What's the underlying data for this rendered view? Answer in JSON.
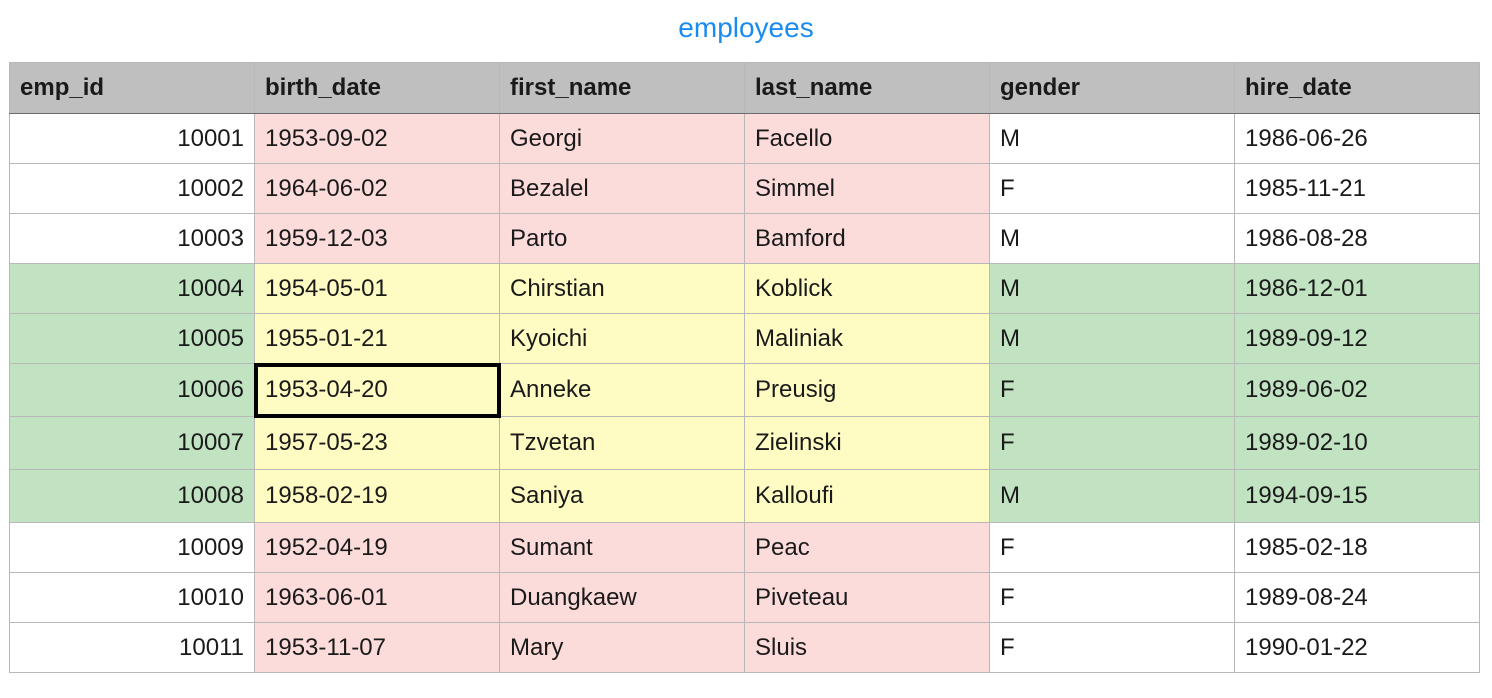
{
  "title": "employees",
  "columns": [
    "emp_id",
    "birth_date",
    "first_name",
    "last_name",
    "gender",
    "hire_date"
  ],
  "rows": [
    [
      "10001",
      "1953-09-02",
      "Georgi",
      "Facello",
      "M",
      "1986-06-26"
    ],
    [
      "10002",
      "1964-06-02",
      "Bezalel",
      "Simmel",
      "F",
      "1985-11-21"
    ],
    [
      "10003",
      "1959-12-03",
      "Parto",
      "Bamford",
      "M",
      "1986-08-28"
    ],
    [
      "10004",
      "1954-05-01",
      "Chirstian",
      "Koblick",
      "M",
      "1986-12-01"
    ],
    [
      "10005",
      "1955-01-21",
      "Kyoichi",
      "Maliniak",
      "M",
      "1989-09-12"
    ],
    [
      "10006",
      "1953-04-20",
      "Anneke",
      "Preusig",
      "F",
      "1989-06-02"
    ],
    [
      "10007",
      "1957-05-23",
      "Tzvetan",
      "Zielinski",
      "F",
      "1989-02-10"
    ],
    [
      "10008",
      "1958-02-19",
      "Saniya",
      "Kalloufi",
      "M",
      "1994-09-15"
    ],
    [
      "10009",
      "1952-04-19",
      "Sumant",
      "Peac",
      "F",
      "1985-02-18"
    ],
    [
      "10010",
      "1963-06-01",
      "Duangkaew",
      "Piveteau",
      "F",
      "1989-08-24"
    ],
    [
      "10011",
      "1953-11-07",
      "Mary",
      "Sluis",
      "F",
      "1990-01-22"
    ]
  ],
  "highlight_colors": {
    "header": "#bfbfbf",
    "pink": "#fcdcdb",
    "yellow": "#fefcc2",
    "green": "#c1e3c2",
    "title": "#1a8cf0"
  },
  "selected_cell": {
    "row": 6,
    "column": "birth_date",
    "value": "1953-04-20"
  }
}
